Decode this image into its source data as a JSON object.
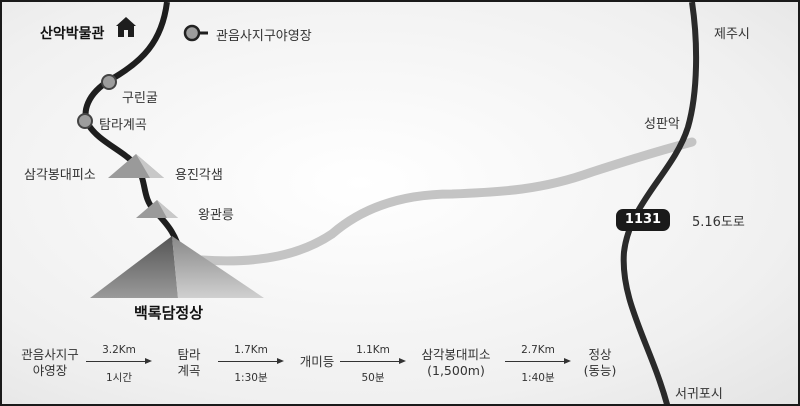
{
  "places": {
    "museum": "산악박물관",
    "campground": "관음사지구야영장",
    "gurin_cave": "구린굴",
    "tamra_valley": "탐라계곡",
    "samgak_shelter": "삼각봉대피소",
    "yongjin_gaksaem": "용진각샘",
    "wanggwan_neung": "왕관릉",
    "summit": "백록담정상",
    "jeju_city": "제주시",
    "seongpanak": "성판악",
    "route_1131": "1131",
    "road_516": "5.16도로",
    "seogwipo": "서귀포시"
  },
  "icons": {
    "museum": "house-icon",
    "campground": "location-marker-icon"
  },
  "course": {
    "steps": [
      {
        "line1": "관음사지구",
        "line2": "야영장"
      },
      {
        "line1": "탐라",
        "line2": "계곡"
      },
      {
        "line1": "개미등",
        "line2": ""
      },
      {
        "line1": "삼각봉대피소",
        "line2": "(1,500m)"
      },
      {
        "line1": "정상",
        "line2": "(동능)"
      }
    ],
    "segments": [
      {
        "distance": "3.2Km",
        "time": "1시간"
      },
      {
        "distance": "1.7Km",
        "time": "1:30분"
      },
      {
        "distance": "1.1Km",
        "time": "50분"
      },
      {
        "distance": "2.7Km",
        "time": "1:40분"
      }
    ]
  }
}
